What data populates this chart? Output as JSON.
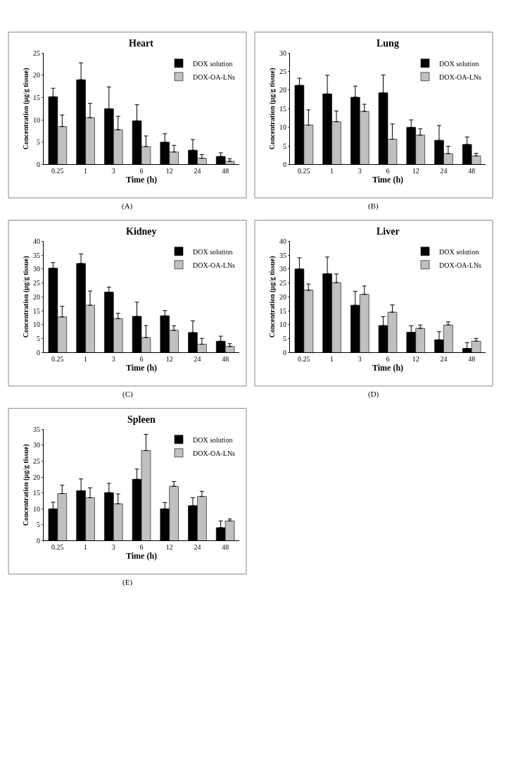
{
  "chart_data": [
    {
      "type": "bar",
      "title": "Heart",
      "xlabel": "Time (h)",
      "ylabel": "Concentration (μg/g tissue)",
      "categories": [
        "0.25",
        "1",
        "3",
        "6",
        "12",
        "24",
        "48"
      ],
      "ylim": [
        0,
        25
      ],
      "yticks": [
        0,
        5,
        10,
        15,
        20,
        25
      ],
      "legend": "top right",
      "annotations": [
        "(A)"
      ],
      "series": [
        {
          "name": "DOX solution",
          "color": "#000000",
          "values": [
            15.2,
            19,
            12.5,
            9.8,
            5,
            3.2,
            1.8
          ],
          "errors": [
            [
              15.2,
              17.1
            ],
            [
              19,
              22.8
            ],
            [
              12.5,
              17.4
            ],
            [
              9.8,
              13.4
            ],
            [
              5,
              6.9
            ],
            [
              3.2,
              5.6
            ],
            [
              1.8,
              2.6
            ]
          ]
        },
        {
          "name": "DOX-OA-LNs",
          "color": "#c0c0c0",
          "values": [
            8.5,
            10.5,
            7.8,
            4,
            2.8,
            1.4,
            0.7
          ],
          "errors": [
            [
              8.5,
              11.1
            ],
            [
              10.5,
              13.7
            ],
            [
              7.8,
              10.8
            ],
            [
              4,
              6.4
            ],
            [
              2.8,
              4.3
            ],
            [
              1.4,
              2.2
            ],
            [
              0.7,
              1.3
            ]
          ]
        }
      ]
    },
    {
      "type": "bar",
      "title": "Lung",
      "xlabel": "Time (h)",
      "ylabel": "Concentration (μg/g tissue)",
      "categories": [
        "0.25",
        "1",
        "3",
        "6",
        "12",
        "24",
        "48"
      ],
      "ylim": [
        0,
        30
      ],
      "yticks": [
        0,
        5,
        10,
        15,
        20,
        25,
        30
      ],
      "legend": "top right",
      "annotations": [
        "(B)"
      ],
      "series": [
        {
          "name": "DOX solution",
          "color": "#000000",
          "values": [
            21.3,
            19,
            18.1,
            19.3,
            10,
            6.5,
            5.4
          ],
          "errors": [
            [
              21.3,
              23.2
            ],
            [
              19,
              24
            ],
            [
              18.1,
              21.1
            ],
            [
              19.3,
              24.1
            ],
            [
              10,
              12
            ],
            [
              6.5,
              10.5
            ],
            [
              5.4,
              7.4
            ]
          ]
        },
        {
          "name": "DOX-OA-LNs",
          "color": "#c0c0c0",
          "values": [
            10.6,
            11.5,
            14.3,
            6.8,
            7.9,
            2.9,
            2.3
          ],
          "errors": [
            [
              10.6,
              14.7
            ],
            [
              11.5,
              14.4
            ],
            [
              14.3,
              16.2
            ],
            [
              6.8,
              10.9
            ],
            [
              7.9,
              9.6
            ],
            [
              2.9,
              4.9
            ],
            [
              2.3,
              3
            ]
          ]
        }
      ]
    },
    {
      "type": "bar",
      "title": "Kidney",
      "xlabel": "Time (h)",
      "ylabel": "Concentration (μg/g tissue)",
      "categories": [
        "0.25",
        "1",
        "3",
        "6",
        "12",
        "24",
        "48"
      ],
      "ylim": [
        0,
        40
      ],
      "yticks": [
        0,
        5,
        10,
        15,
        20,
        25,
        30,
        35,
        40
      ],
      "legend": "top right",
      "annotations": [
        "(C)"
      ],
      "series": [
        {
          "name": "DOX solution",
          "color": "#000000",
          "values": [
            30.3,
            32,
            21.7,
            13,
            13.2,
            7.2,
            4.1
          ],
          "errors": [
            [
              30.3,
              32.3
            ],
            [
              32,
              35.4
            ],
            [
              21.7,
              23.5
            ],
            [
              13,
              18.1
            ],
            [
              13.2,
              15.1
            ],
            [
              7.2,
              11.4
            ],
            [
              4.1,
              5.9
            ]
          ]
        },
        {
          "name": "DOX-OA-LNs",
          "color": "#c0c0c0",
          "values": [
            12.8,
            17,
            12.2,
            5.4,
            8,
            3,
            2.2
          ],
          "errors": [
            [
              12.8,
              16.6
            ],
            [
              17,
              22.1
            ],
            [
              12.2,
              14.1
            ],
            [
              5.4,
              9.7
            ],
            [
              8,
              9.6
            ],
            [
              3,
              5.1
            ],
            [
              2.2,
              3.2
            ]
          ]
        }
      ]
    },
    {
      "type": "bar",
      "title": "Liver",
      "xlabel": "Time (h)",
      "ylabel": "Concentration (μg/g tissue)",
      "categories": [
        "0.25",
        "1",
        "3",
        "6",
        "12",
        "24",
        "48"
      ],
      "ylim": [
        0,
        40
      ],
      "yticks": [
        0,
        5,
        10,
        15,
        20,
        25,
        30,
        35,
        40
      ],
      "legend": "top right",
      "annotations": [
        "(D)"
      ],
      "series": [
        {
          "name": "DOX solution",
          "color": "#000000",
          "values": [
            30,
            28.3,
            17,
            9.7,
            7.3,
            4.6,
            1.5
          ],
          "errors": [
            [
              30,
              34
            ],
            [
              28.3,
              34.3
            ],
            [
              17,
              22
            ],
            [
              9.7,
              12.9
            ],
            [
              7.3,
              9.6
            ],
            [
              4.6,
              7.5
            ],
            [
              1.5,
              3.6
            ]
          ]
        },
        {
          "name": "DOX-OA-LNs",
          "color": "#c0c0c0",
          "values": [
            22.4,
            25.1,
            20.9,
            14.5,
            8.7,
            9.9,
            4.1
          ],
          "errors": [
            [
              22.4,
              24.6
            ],
            [
              25.1,
              28.2
            ],
            [
              20.9,
              23.9
            ],
            [
              14.5,
              17.1
            ],
            [
              8.7,
              9.9
            ],
            [
              9.9,
              11
            ],
            [
              4.1,
              5.1
            ]
          ]
        }
      ]
    },
    {
      "type": "bar",
      "title": "Spleen",
      "xlabel": "Time (h)",
      "ylabel": "Concentration (μg/g tissue)",
      "categories": [
        "0.25",
        "1",
        "3",
        "6",
        "12",
        "24",
        "48"
      ],
      "ylim": [
        0,
        35
      ],
      "yticks": [
        0,
        5,
        10,
        15,
        20,
        25,
        30,
        35
      ],
      "legend": "top right",
      "annotations": [
        "(E)"
      ],
      "series": [
        {
          "name": "DOX solution",
          "color": "#000000",
          "values": [
            10,
            15.7,
            15.1,
            19.3,
            10,
            11,
            4.1
          ],
          "errors": [
            [
              10,
              12.1
            ],
            [
              15.7,
              19.4
            ],
            [
              15.1,
              18
            ],
            [
              19.3,
              22.5
            ],
            [
              10,
              12
            ],
            [
              11,
              13.5
            ],
            [
              4.1,
              6.2
            ]
          ]
        },
        {
          "name": "DOX-OA-LNs",
          "color": "#c0c0c0",
          "values": [
            14.8,
            13.5,
            11.6,
            28.3,
            17.1,
            13.9,
            6.2
          ],
          "errors": [
            [
              14.8,
              17.4
            ],
            [
              13.5,
              16.6
            ],
            [
              11.6,
              14.7
            ],
            [
              28.3,
              33.4
            ],
            [
              17.1,
              18.6
            ],
            [
              13.9,
              15.5
            ],
            [
              6.2,
              6.8
            ]
          ]
        }
      ]
    }
  ]
}
